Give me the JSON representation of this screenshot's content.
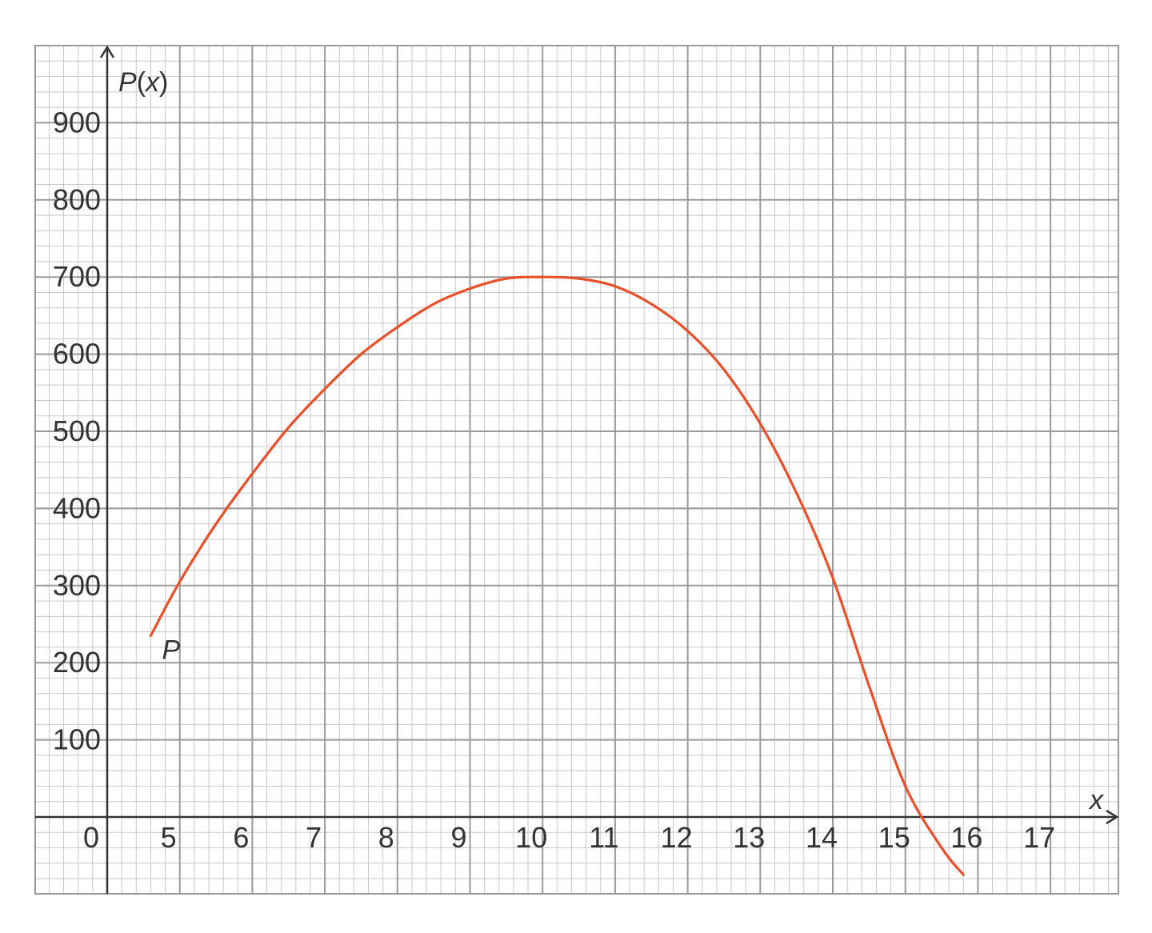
{
  "chart_data": {
    "type": "line",
    "title": "",
    "xlabel": "x",
    "ylabel": "P(x)",
    "origin_label": "0",
    "x_ticks": [
      "5",
      "6",
      "7",
      "8",
      "9",
      "10",
      "11",
      "12",
      "13",
      "14",
      "15",
      "16",
      "17"
    ],
    "y_ticks": [
      "100",
      "200",
      "300",
      "400",
      "500",
      "600",
      "700",
      "800",
      "900"
    ],
    "xlim": [
      4,
      18
    ],
    "ylim": [
      -100,
      1000
    ],
    "grid": true,
    "series": [
      {
        "name": "P",
        "color": "#e8502a",
        "x": [
          4.6,
          5.0,
          5.5,
          6.0,
          6.5,
          7.0,
          7.5,
          8.0,
          8.5,
          9.0,
          9.5,
          10.0,
          10.5,
          11.0,
          11.5,
          12.0,
          12.5,
          13.0,
          13.5,
          14.0,
          14.5,
          15.0,
          15.5,
          15.8
        ],
        "y": [
          235,
          305,
          380,
          445,
          505,
          555,
          600,
          635,
          665,
          685,
          698,
          700,
          698,
          688,
          665,
          630,
          580,
          510,
          420,
          310,
          170,
          40,
          -40,
          -75
        ]
      }
    ],
    "annotations": [
      {
        "text": "P",
        "x": 4.88,
        "y": 205
      }
    ]
  },
  "colors": {
    "background": "#ffffff",
    "grid_major": "#9a9a9a",
    "grid_minor": "#c8c8c8",
    "axis": "#333333",
    "curve": "#e8502a"
  }
}
